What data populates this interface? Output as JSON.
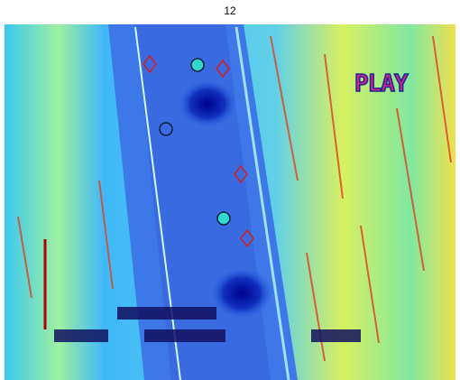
{
  "title": "12",
  "overlay_text": "PLAY"
}
